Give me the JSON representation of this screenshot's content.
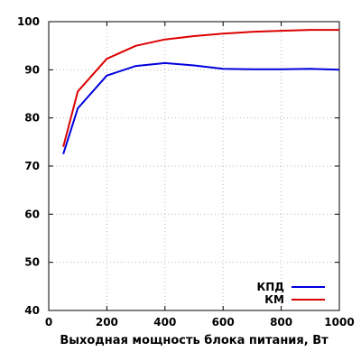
{
  "chart_data": {
    "type": "line",
    "title": "",
    "xlabel": "Выходная мощность блока питания, Вт",
    "ylabel": "",
    "xlim": [
      0,
      1000
    ],
    "ylim": [
      40,
      100
    ],
    "xticks": [
      0,
      200,
      400,
      600,
      800,
      1000
    ],
    "yticks": [
      40,
      50,
      60,
      70,
      80,
      90,
      100
    ],
    "grid": true,
    "legend_position": "bottom-right",
    "series": [
      {
        "name": "КПД",
        "color": "#0000dd",
        "x": [
          50,
          100,
          200,
          300,
          400,
          500,
          600,
          700,
          800,
          900,
          1000
        ],
        "y": [
          72.5,
          82,
          88.8,
          90.8,
          91.4,
          90.9,
          90.2,
          90.1,
          90.1,
          90.2,
          90
        ]
      },
      {
        "name": "КМ",
        "color": "#dd0000",
        "x": [
          50,
          100,
          200,
          300,
          400,
          500,
          600,
          700,
          800,
          900,
          1000
        ],
        "y": [
          74,
          85.5,
          92.3,
          95,
          96.3,
          97,
          97.5,
          97.9,
          98.1,
          98.3,
          98.3
        ]
      }
    ]
  }
}
